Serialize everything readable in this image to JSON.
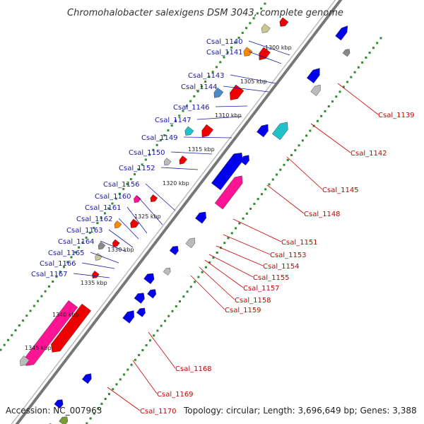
{
  "title": "Chromohalobacter salexigens DSM 3043, complete genome",
  "footer": {
    "accession": "Accession: NC_007963",
    "info": "Topology: circular; Length: 3,696,649 bp; Genes: 3,388"
  },
  "kbp_ticks": [
    "1300 kbp",
    "1305 kbp",
    "1310 kbp",
    "1315 kbp",
    "1320 kbp",
    "1325 kbp",
    "1330 kbp",
    "1335 kbp",
    "1340 kbp",
    "1345 kbp"
  ],
  "left_labels": [
    "Csal_1140",
    "Csal_1141",
    "Csal_1143",
    "Csal_1144",
    "Csal_1146",
    "Csal_1147",
    "Csal_1149",
    "Csal_1150",
    "Csal_1152",
    "Csal_1156",
    "Csal_1160",
    "Csal_1161",
    "Csal_1162",
    "Csal_1163",
    "Csal_1164",
    "Csal_1165",
    "Csal_1166",
    "Csal_1167"
  ],
  "right_labels": [
    "Csal_1139",
    "Csal_1142",
    "Csal_1145",
    "Csal_1148",
    "Csal_1151",
    "Csal_1153",
    "Csal_1154",
    "Csal_1155",
    "Csal_1157",
    "Csal_1158",
    "Csal_1159",
    "Csal_1168",
    "Csal_1169",
    "Csal_1170"
  ],
  "colors": {
    "forward_gene": "#0000ee",
    "reverse_gene": "#ee0000",
    "rna_gene": "#ff1493",
    "backbone": "#777777",
    "tick_dots": "#2e8b2e",
    "label_left": "#1a1aa8",
    "label_right": "#cc0000"
  }
}
